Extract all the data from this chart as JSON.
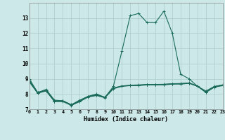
{
  "xlabel": "Humidex (Indice chaleur)",
  "background_color": "#cce8e8",
  "grid_color": "#b0d0d0",
  "line_color": "#1a6b5a",
  "series": [
    {
      "x": [
        0,
        1,
        2,
        3,
        4,
        5,
        6,
        7,
        8,
        9,
        10,
        11,
        12,
        13,
        14,
        15,
        16,
        17,
        18,
        19,
        20,
        21,
        22,
        23
      ],
      "y": [
        9.0,
        8.1,
        8.3,
        7.6,
        7.55,
        7.3,
        7.6,
        7.85,
        8.0,
        7.78,
        8.5,
        10.8,
        13.15,
        13.3,
        12.7,
        12.7,
        13.45,
        12.0,
        9.3,
        9.0,
        8.5,
        8.2,
        8.5,
        8.6
      ]
    },
    {
      "x": [
        0,
        1,
        2,
        3,
        4,
        5,
        6,
        7,
        8,
        9,
        10,
        11,
        12,
        13,
        14,
        15,
        16,
        17,
        18,
        19,
        20,
        21,
        22,
        23
      ],
      "y": [
        8.8,
        8.05,
        8.2,
        7.5,
        7.5,
        7.25,
        7.5,
        7.8,
        7.9,
        7.75,
        8.35,
        8.5,
        8.55,
        8.55,
        8.6,
        8.6,
        8.6,
        8.65,
        8.65,
        8.7,
        8.5,
        8.1,
        8.45,
        8.55
      ]
    },
    {
      "x": [
        0,
        1,
        2,
        3,
        4,
        5,
        6,
        7,
        8,
        9,
        10,
        11,
        12,
        13,
        14,
        15,
        16,
        17,
        18,
        19,
        20,
        21,
        22,
        23
      ],
      "y": [
        8.85,
        8.08,
        8.22,
        7.52,
        7.53,
        7.27,
        7.52,
        7.82,
        7.92,
        7.77,
        8.37,
        8.52,
        8.57,
        8.58,
        8.62,
        8.62,
        8.63,
        8.67,
        8.68,
        8.72,
        8.52,
        8.12,
        8.47,
        8.58
      ]
    },
    {
      "x": [
        0,
        1,
        2,
        3,
        4,
        5,
        6,
        7,
        8,
        9,
        10,
        11,
        12,
        13,
        14,
        15,
        16,
        17,
        18,
        19,
        20,
        21,
        22,
        23
      ],
      "y": [
        8.9,
        8.1,
        8.25,
        7.55,
        7.56,
        7.28,
        7.55,
        7.84,
        7.95,
        7.79,
        8.4,
        8.53,
        8.58,
        8.6,
        8.63,
        8.63,
        8.64,
        8.68,
        8.69,
        8.73,
        8.53,
        8.13,
        8.48,
        8.6
      ]
    }
  ],
  "ylim": [
    7,
    14
  ],
  "xlim": [
    0,
    23
  ],
  "yticks": [
    7,
    8,
    9,
    10,
    11,
    12,
    13
  ],
  "xticks": [
    0,
    1,
    2,
    3,
    4,
    5,
    6,
    7,
    8,
    9,
    10,
    11,
    12,
    13,
    14,
    15,
    16,
    17,
    18,
    19,
    20,
    21,
    22,
    23
  ]
}
